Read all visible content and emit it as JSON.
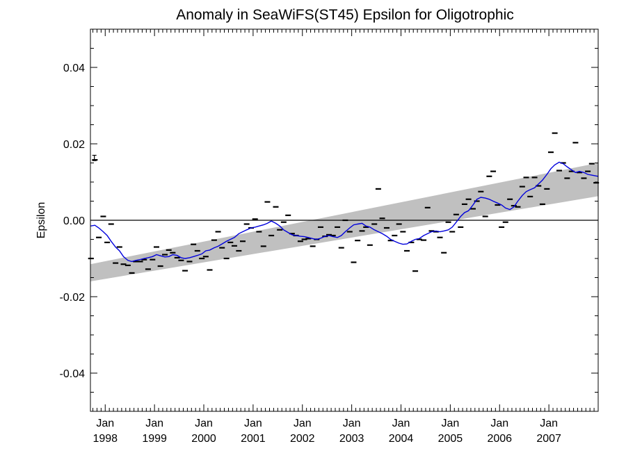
{
  "chart_data": {
    "type": "scatter",
    "title": "Anomaly in SeaWiFS(ST45) Epsilon for Oligotrophic",
    "ylabel": "Epsilon",
    "xlabel": "",
    "xlim": [
      1997.7,
      2008.0
    ],
    "ylim": [
      -0.05,
      0.05
    ],
    "yticks": [
      -0.04,
      -0.02,
      0.0,
      0.02,
      0.04
    ],
    "ytick_labels": [
      "-0.04",
      "-0.02",
      "0.00",
      "0.02",
      "0.04"
    ],
    "xticks": [
      1998,
      1999,
      2000,
      2001,
      2002,
      2003,
      2004,
      2005,
      2006,
      2007
    ],
    "xtick_labels": [
      {
        "month": "Jan",
        "year": "1998"
      },
      {
        "month": "Jan",
        "year": "1999"
      },
      {
        "month": "Jan",
        "year": "2000"
      },
      {
        "month": "Jan",
        "year": "2001"
      },
      {
        "month": "Jan",
        "year": "2002"
      },
      {
        "month": "Jan",
        "year": "2003"
      },
      {
        "month": "Jan",
        "year": "2004"
      },
      {
        "month": "Jan",
        "year": "2005"
      },
      {
        "month": "Jan",
        "year": "2006"
      },
      {
        "month": "Jan",
        "year": "2007"
      }
    ],
    "zero_line": 0.0,
    "error_bar_marker": {
      "x": 1997.78,
      "y": 0.0163,
      "half_height": 0.0007
    },
    "trend_band": {
      "x": [
        1997.7,
        2008.0
      ],
      "upper": [
        -0.0115,
        0.015
      ],
      "lower": [
        -0.016,
        0.0063
      ]
    },
    "colors": {
      "points": "#000000",
      "smoothed": "#0000dd",
      "band": "#c0c0c0",
      "axes": "#000000"
    },
    "series": [
      {
        "type": "scatter",
        "marker": "dash",
        "x": [
          1997.71,
          1997.79,
          1997.87,
          1997.96,
          1998.04,
          1998.12,
          1998.21,
          1998.29,
          1998.37,
          1998.46,
          1998.54,
          1998.62,
          1998.71,
          1998.79,
          1998.87,
          1998.96,
          1999.04,
          1999.12,
          1999.21,
          1999.29,
          1999.37,
          1999.46,
          1999.54,
          1999.62,
          1999.71,
          1999.79,
          1999.87,
          1999.96,
          2000.04,
          2000.12,
          2000.21,
          2000.29,
          2000.37,
          2000.46,
          2000.54,
          2000.62,
          2000.71,
          2000.79,
          2000.87,
          2000.96,
          2001.04,
          2001.12,
          2001.21,
          2001.29,
          2001.37,
          2001.46,
          2001.54,
          2001.62,
          2001.71,
          2001.79,
          2001.87,
          2001.96,
          2002.04,
          2002.12,
          2002.21,
          2002.29,
          2002.37,
          2002.46,
          2002.54,
          2002.62,
          2002.71,
          2002.79,
          2002.87,
          2002.96,
          2003.04,
          2003.12,
          2003.21,
          2003.29,
          2003.37,
          2003.46,
          2003.54,
          2003.62,
          2003.71,
          2003.79,
          2003.87,
          2003.96,
          2004.04,
          2004.12,
          2004.21,
          2004.29,
          2004.37,
          2004.46,
          2004.54,
          2004.62,
          2004.71,
          2004.79,
          2004.87,
          2004.96,
          2005.04,
          2005.12,
          2005.21,
          2005.29,
          2005.37,
          2005.46,
          2005.54,
          2005.62,
          2005.71,
          2005.79,
          2005.87,
          2005.96,
          2006.04,
          2006.12,
          2006.21,
          2006.29,
          2006.37,
          2006.46,
          2006.54,
          2006.62,
          2006.71,
          2006.79,
          2006.87,
          2006.96,
          2007.04,
          2007.12,
          2007.21,
          2007.29,
          2007.37,
          2007.46,
          2007.54,
          2007.62,
          2007.71,
          2007.79,
          2007.87,
          2007.96
        ],
        "y": [
          -0.01,
          0.0158,
          -0.0045,
          0.001,
          -0.0058,
          -0.001,
          -0.0112,
          -0.007,
          -0.0115,
          -0.0118,
          -0.0138,
          -0.0108,
          -0.0108,
          -0.0103,
          -0.0128,
          -0.0103,
          -0.007,
          -0.012,
          -0.009,
          -0.0078,
          -0.0085,
          -0.0098,
          -0.0105,
          -0.0132,
          -0.0108,
          -0.0063,
          -0.008,
          -0.01,
          -0.0095,
          -0.013,
          -0.0052,
          -0.003,
          -0.0072,
          -0.01,
          -0.0058,
          -0.0067,
          -0.008,
          -0.0055,
          -0.001,
          -0.002,
          0.0003,
          -0.003,
          -0.0068,
          0.0048,
          -0.004,
          0.0035,
          -0.0025,
          -0.0005,
          0.0013,
          -0.0035,
          -0.004,
          -0.0055,
          -0.005,
          -0.0048,
          -0.0068,
          -0.005,
          -0.0018,
          -0.0042,
          -0.0038,
          -0.004,
          -0.0018,
          -0.0072,
          0.0,
          -0.003,
          -0.011,
          -0.0053,
          -0.0028,
          -0.0018,
          -0.0065,
          -0.001,
          0.0082,
          0.0005,
          -0.002,
          -0.0053,
          -0.004,
          -0.001,
          -0.003,
          -0.008,
          -0.0058,
          -0.0133,
          -0.005,
          -0.0052,
          0.0033,
          -0.0028,
          -0.003,
          -0.0045,
          -0.0085,
          -0.0005,
          -0.003,
          0.0015,
          -0.0018,
          0.0042,
          0.0055,
          0.003,
          0.005,
          0.0075,
          0.001,
          0.0115,
          0.0128,
          0.004,
          -0.0018,
          -0.0005,
          0.0055,
          0.0038,
          0.0035,
          0.0088,
          0.0112,
          0.0062,
          0.0112,
          0.009,
          0.0042,
          0.0082,
          0.0178,
          0.0228,
          0.013,
          0.015,
          0.011,
          0.0128,
          0.0203,
          0.0125,
          0.011,
          0.0128,
          0.0148,
          0.0098
        ]
      },
      {
        "type": "line",
        "x": [
          1997.7,
          1997.79,
          1997.87,
          1997.96,
          1998.04,
          1998.12,
          1998.21,
          1998.29,
          1998.37,
          1998.46,
          1998.54,
          1998.62,
          1998.71,
          1998.79,
          1998.87,
          1998.96,
          1999.04,
          1999.12,
          1999.21,
          1999.29,
          1999.37,
          1999.46,
          1999.54,
          1999.62,
          1999.71,
          1999.79,
          1999.87,
          1999.96,
          2000.04,
          2000.12,
          2000.21,
          2000.29,
          2000.37,
          2000.46,
          2000.54,
          2000.62,
          2000.71,
          2000.79,
          2000.87,
          2000.96,
          2001.04,
          2001.12,
          2001.21,
          2001.29,
          2001.37,
          2001.46,
          2001.54,
          2001.62,
          2001.71,
          2001.79,
          2001.87,
          2001.96,
          2002.04,
          2002.12,
          2002.21,
          2002.29,
          2002.37,
          2002.46,
          2002.54,
          2002.62,
          2002.71,
          2002.79,
          2002.87,
          2002.96,
          2003.04,
          2003.12,
          2003.21,
          2003.29,
          2003.37,
          2003.46,
          2003.54,
          2003.62,
          2003.71,
          2003.79,
          2003.87,
          2003.96,
          2004.04,
          2004.12,
          2004.21,
          2004.29,
          2004.37,
          2004.46,
          2004.54,
          2004.62,
          2004.71,
          2004.79,
          2004.87,
          2004.96,
          2005.04,
          2005.12,
          2005.21,
          2005.29,
          2005.37,
          2005.46,
          2005.54,
          2005.62,
          2005.71,
          2005.79,
          2005.87,
          2005.96,
          2006.04,
          2006.12,
          2006.21,
          2006.29,
          2006.37,
          2006.46,
          2006.54,
          2006.62,
          2006.71,
          2006.79,
          2006.87,
          2006.96,
          2007.04,
          2007.12,
          2007.21,
          2007.29,
          2007.37,
          2007.46,
          2007.54,
          2007.62,
          2007.71,
          2007.79,
          2007.87,
          2008.0
        ],
        "y": [
          -0.0015,
          -0.0013,
          -0.002,
          -0.003,
          -0.004,
          -0.0055,
          -0.007,
          -0.008,
          -0.0095,
          -0.0105,
          -0.0108,
          -0.0105,
          -0.0103,
          -0.01,
          -0.0098,
          -0.0095,
          -0.009,
          -0.0093,
          -0.0096,
          -0.0095,
          -0.009,
          -0.0092,
          -0.0098,
          -0.01,
          -0.0098,
          -0.0095,
          -0.0092,
          -0.0088,
          -0.008,
          -0.0078,
          -0.0072,
          -0.0068,
          -0.0062,
          -0.0055,
          -0.005,
          -0.0045,
          -0.0035,
          -0.003,
          -0.0025,
          -0.002,
          -0.0018,
          -0.0015,
          -0.0012,
          -0.0008,
          -0.0002,
          -0.0008,
          -0.0015,
          -0.0025,
          -0.0032,
          -0.0038,
          -0.004,
          -0.0042,
          -0.0043,
          -0.0045,
          -0.0048,
          -0.005,
          -0.0047,
          -0.0042,
          -0.004,
          -0.0043,
          -0.0045,
          -0.004,
          -0.003,
          -0.002,
          -0.0012,
          -0.001,
          -0.0008,
          -0.0015,
          -0.0018,
          -0.0025,
          -0.003,
          -0.0035,
          -0.0042,
          -0.005,
          -0.0055,
          -0.006,
          -0.0063,
          -0.0062,
          -0.0055,
          -0.005,
          -0.0048,
          -0.004,
          -0.0035,
          -0.003,
          -0.0028,
          -0.003,
          -0.0028,
          -0.0025,
          -0.0018,
          -0.0005,
          0.001,
          0.002,
          0.0025,
          0.004,
          0.0055,
          0.006,
          0.0058,
          0.0055,
          0.005,
          0.0045,
          0.004,
          0.0032,
          0.0028,
          0.0035,
          0.005,
          0.0065,
          0.0075,
          0.008,
          0.0085,
          0.0095,
          0.0105,
          0.012,
          0.0135,
          0.0145,
          0.0152,
          0.0148,
          0.014,
          0.0132,
          0.0125,
          0.0128,
          0.0125,
          0.012,
          0.0118,
          0.0115
        ]
      }
    ]
  }
}
